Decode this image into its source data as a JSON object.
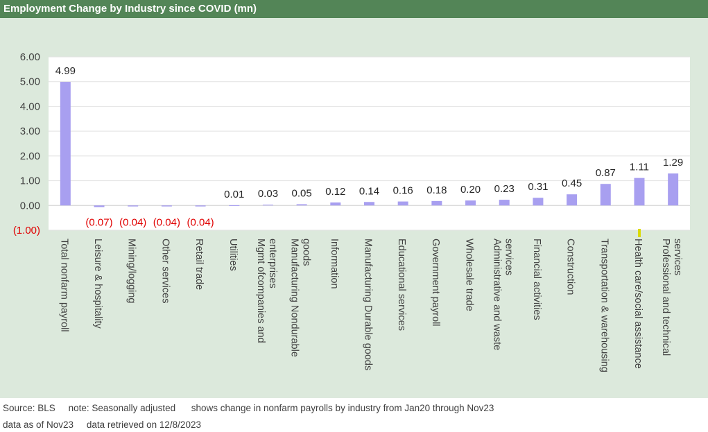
{
  "header": {
    "title": "Employment Change by Industry since COVID (mn)"
  },
  "chart_data": {
    "type": "bar",
    "title": "Employment Change by Industry since COVID (mn)",
    "ylim": [
      -1.0,
      6.0
    ],
    "yticks": [
      6.0,
      5.0,
      4.0,
      3.0,
      2.0,
      1.0,
      0.0,
      -1.0
    ],
    "ytick_labels": [
      "6.00",
      "5.00",
      "4.00",
      "3.00",
      "2.00",
      "1.00",
      "0.00",
      "(1.00)"
    ],
    "grid": true,
    "bar_color": "#a89ff0",
    "negative_label_color": "#e00000",
    "categories": [
      "Total nonfarm payroll",
      "Leisure & hospitality",
      "Mining/logging",
      "Other services",
      "Retail trade",
      "Utilities",
      "Mgmt ofcompanies and enterprises",
      "Manufacturing Nondurable goods",
      "Information",
      "Manufacturing Durable goods",
      "Educational services",
      "Government payroll",
      "Wholesale trade",
      "Administrative and waste services",
      "Financial activities",
      "Construction",
      "Transportation & warehousing",
      "Health care/social assistance",
      "Professional and technical services"
    ],
    "category_label_lines": [
      [
        "Total nonfarm payroll"
      ],
      [
        "Leisure & hospitality"
      ],
      [
        "Mining/logging"
      ],
      [
        "Other services"
      ],
      [
        "Retail trade"
      ],
      [
        "Utilities"
      ],
      [
        "Mgmt ofcompanies and",
        "enterprises"
      ],
      [
        "Manufacturing Nondurable",
        "goods"
      ],
      [
        "Information"
      ],
      [
        "Manufacturing Durable goods"
      ],
      [
        "Educational services"
      ],
      [
        "Government payroll"
      ],
      [
        "Wholesale trade"
      ],
      [
        "Administrative and waste",
        "services"
      ],
      [
        "Financial activities"
      ],
      [
        "Construction"
      ],
      [
        "Transportation & warehousing"
      ],
      [
        "Health care/social assistance"
      ],
      [
        "Professional and technical",
        "services"
      ]
    ],
    "values": [
      4.99,
      -0.07,
      -0.04,
      -0.04,
      -0.04,
      0.01,
      0.03,
      0.05,
      0.12,
      0.14,
      0.16,
      0.18,
      0.2,
      0.23,
      0.31,
      0.45,
      0.87,
      1.11,
      1.29
    ],
    "data_labels": [
      "4.99",
      "(0.07)",
      "(0.04)",
      "(0.04)",
      "(0.04)",
      "0.01",
      "0.03",
      "0.05",
      "0.12",
      "0.14",
      "0.16",
      "0.18",
      "0.20",
      "0.23",
      "0.31",
      "0.45",
      "0.87",
      "1.11",
      "1.29"
    ]
  },
  "footer": {
    "source": "Source: BLS",
    "note": "note: Seasonally adjusted",
    "description": "shows change in nonfarm payrolls by industry from Jan20 through Nov23",
    "data_as_of": "data as of Nov23",
    "retrieved": "data retrieved on 12/8/2023"
  }
}
